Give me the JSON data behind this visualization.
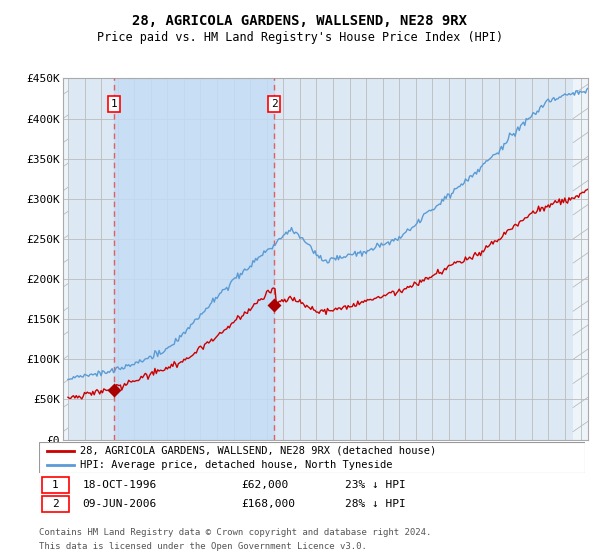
{
  "title": "28, AGRICOLA GARDENS, WALLSEND, NE28 9RX",
  "subtitle": "Price paid vs. HM Land Registry's House Price Index (HPI)",
  "ylim": [
    0,
    450000
  ],
  "yticks": [
    0,
    50000,
    100000,
    150000,
    200000,
    250000,
    300000,
    350000,
    400000,
    450000
  ],
  "ytick_labels": [
    "£0",
    "£50K",
    "£100K",
    "£150K",
    "£200K",
    "£250K",
    "£300K",
    "£350K",
    "£400K",
    "£450K"
  ],
  "hpi_color": "#5b9bd5",
  "price_color": "#cc0000",
  "marker_color": "#aa0000",
  "vline_color": "#e06060",
  "background_color": "#ffffff",
  "plot_bg_color": "#dce9f5",
  "hatch_color": "#c8c8c8",
  "grid_color": "#bbbbbb",
  "sale1_year": 1996.8,
  "sale1_price": 62000,
  "sale2_year": 2006.45,
  "sale2_price": 168000,
  "legend_line1": "28, AGRICOLA GARDENS, WALLSEND, NE28 9RX (detached house)",
  "legend_line2": "HPI: Average price, detached house, North Tyneside",
  "footer1": "Contains HM Land Registry data © Crown copyright and database right 2024.",
  "footer2": "This data is licensed under the Open Government Licence v3.0.",
  "xmin": 1993.7,
  "xmax": 2025.4
}
